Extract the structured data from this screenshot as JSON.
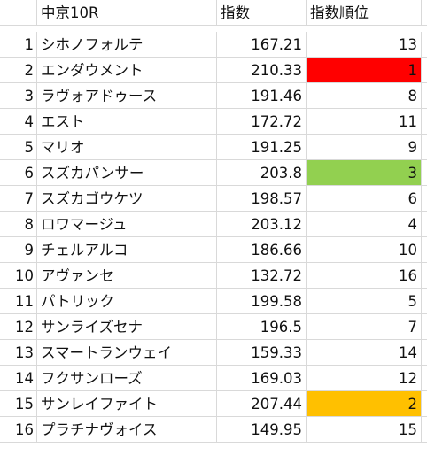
{
  "header": {
    "row_num": "",
    "name": "中京10R",
    "index": "指数",
    "rank": "指数順位"
  },
  "highlight_colors": {
    "red": "#ff0000",
    "green": "#92d050",
    "orange": "#ffc000"
  },
  "rows": [
    {
      "num": "1",
      "name": "シホノフォルテ",
      "index": "167.21",
      "rank": "13",
      "hl": ""
    },
    {
      "num": "2",
      "name": "エンダウメント",
      "index": "210.33",
      "rank": "1",
      "hl": "#ff0000"
    },
    {
      "num": "3",
      "name": "ラヴォアドゥース",
      "index": "191.46",
      "rank": "8",
      "hl": ""
    },
    {
      "num": "4",
      "name": "エスト",
      "index": "172.72",
      "rank": "11",
      "hl": ""
    },
    {
      "num": "5",
      "name": "マリオ",
      "index": "191.25",
      "rank": "9",
      "hl": ""
    },
    {
      "num": "6",
      "name": "スズカパンサー",
      "index": "203.8",
      "rank": "3",
      "hl": "#92d050"
    },
    {
      "num": "7",
      "name": "スズカゴウケツ",
      "index": "198.57",
      "rank": "6",
      "hl": ""
    },
    {
      "num": "8",
      "name": "ロワマージュ",
      "index": "203.12",
      "rank": "4",
      "hl": ""
    },
    {
      "num": "9",
      "name": "チェルアルコ",
      "index": "186.66",
      "rank": "10",
      "hl": ""
    },
    {
      "num": "10",
      "name": "アヴァンセ",
      "index": "132.72",
      "rank": "16",
      "hl": ""
    },
    {
      "num": "11",
      "name": "パトリック",
      "index": "199.58",
      "rank": "5",
      "hl": ""
    },
    {
      "num": "12",
      "name": "サンライズセナ",
      "index": "196.5",
      "rank": "7",
      "hl": ""
    },
    {
      "num": "13",
      "name": "スマートランウェイ",
      "index": "159.33",
      "rank": "14",
      "hl": ""
    },
    {
      "num": "14",
      "name": "フクサンローズ",
      "index": "169.03",
      "rank": "12",
      "hl": ""
    },
    {
      "num": "15",
      "name": "サンレイファイト",
      "index": "207.44",
      "rank": "2",
      "hl": "#ffc000"
    },
    {
      "num": "16",
      "name": "プラチナヴォイス",
      "index": "149.95",
      "rank": "15",
      "hl": ""
    }
  ]
}
